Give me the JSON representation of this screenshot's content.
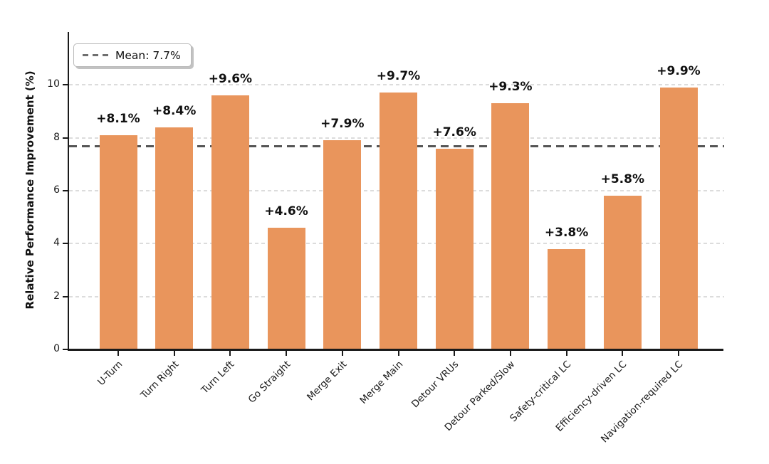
{
  "chart_data": {
    "type": "bar",
    "title": "",
    "xlabel": "",
    "ylabel": "Relative Performance Improvement (%)",
    "categories": [
      "U-Turn",
      "Turn Right",
      "Turn Left",
      "Go Straight",
      "Merge Exit",
      "Merge Main",
      "Detour VRUs",
      "Detour Parked/Slow",
      "Safety-critical LC",
      "Efficiency-driven LC",
      "Navigation-required LC"
    ],
    "values": [
      8.1,
      8.4,
      9.6,
      4.6,
      7.9,
      9.7,
      7.6,
      9.3,
      3.8,
      5.8,
      9.9
    ],
    "bar_labels": [
      "+8.1%",
      "+8.4%",
      "+9.6%",
      "+4.6%",
      "+7.9%",
      "+9.7%",
      "+7.6%",
      "+9.3%",
      "+3.8%",
      "+5.8%",
      "+9.9%"
    ],
    "yticks": [
      0,
      2,
      4,
      6,
      8,
      10
    ],
    "ylim": [
      0,
      12
    ],
    "mean_value": 7.7,
    "legend": {
      "label": "Mean: 7.7%",
      "position": "upper-left",
      "line_style": "dashed"
    },
    "grid": {
      "horizontal": true,
      "style": "dashed"
    },
    "colors": {
      "bar": "#E9955C",
      "mean_line": "#555555",
      "gridline": "#DCDCDC",
      "axis": "#1A1A1A",
      "label_text": "#111111"
    }
  }
}
